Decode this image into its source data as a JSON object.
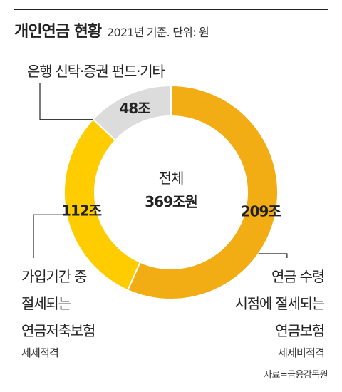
{
  "header": {
    "title": "개인연금 현황",
    "subtitle": "2021년 기준. 단위: 원"
  },
  "chart_data": {
    "type": "pie",
    "center_label": "전체",
    "center_value": "369조원",
    "unit": "조원",
    "total": 369,
    "slices": [
      {
        "value": 209,
        "value_label": "209조",
        "label_lines": [
          "연금 수령",
          "시점에 절세되는",
          "연금보험"
        ],
        "note": "세제비적격",
        "color": "#f2ac14"
      },
      {
        "value": 112,
        "value_label": "112조",
        "label_lines": [
          "가입기간 중",
          "절세되는",
          "연금저축보험"
        ],
        "note": "세제적격",
        "color": "#ffcc00"
      },
      {
        "value": 48,
        "value_label": "48조",
        "label_lines": [
          "은행 신탁·증권 펀드·기타"
        ],
        "note": "",
        "color": "#dcdcdc"
      }
    ]
  },
  "source": "자료=금융감독원"
}
